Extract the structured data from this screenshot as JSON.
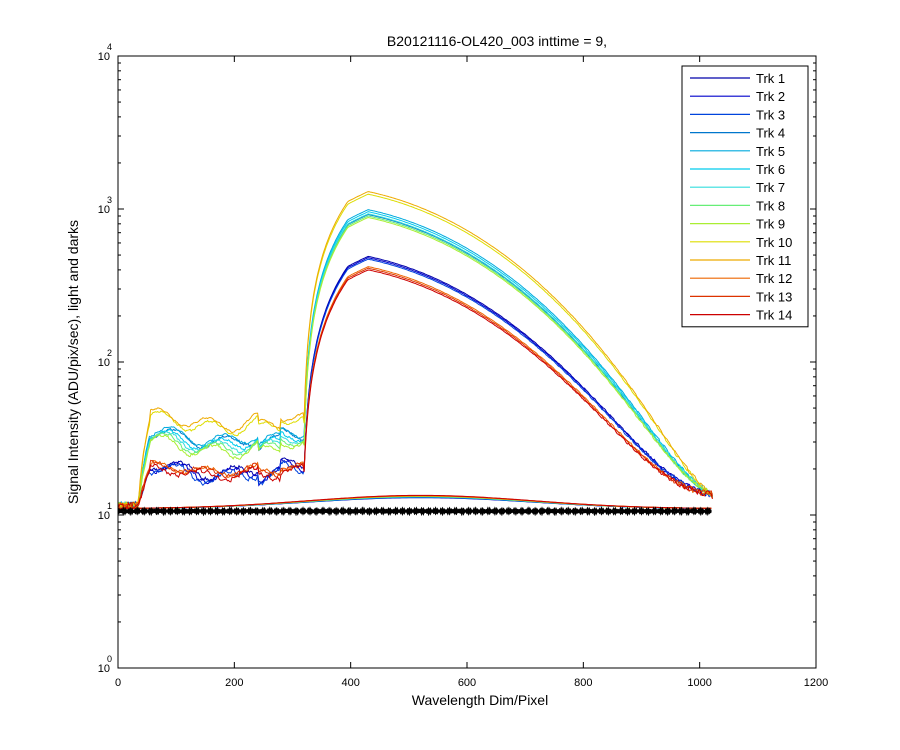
{
  "chart_data": {
    "type": "line",
    "title": "B20121116-OL420_003 inttime = 9,",
    "xlabel": "Wavelength Dim/Pixel",
    "ylabel": "Signal Intensity (ADU/pix/sec), light and darks",
    "xlim": [
      0,
      1200
    ],
    "ylim_exponents": [
      0,
      4
    ],
    "y_scale": "log",
    "x_ticks": [
      "0",
      "200",
      "400",
      "600",
      "800",
      "1000",
      "1200"
    ],
    "y_ticks": [
      {
        "base": "10",
        "exp": "0"
      },
      {
        "base": "10",
        "exp": "1"
      },
      {
        "base": "10",
        "exp": "2"
      },
      {
        "base": "10",
        "exp": "3"
      },
      {
        "base": "10",
        "exp": "4"
      }
    ],
    "grid": false,
    "legend_position": "top-right",
    "series": [
      {
        "name": "Trk 1",
        "color": "#0000aa",
        "peak": 490,
        "lowlevel": 20,
        "ripple": 3
      },
      {
        "name": "Trk 2",
        "color": "#0000cc",
        "peak": 480,
        "lowlevel": 19.5,
        "ripple": 3
      },
      {
        "name": "Trk 3",
        "color": "#0044dd",
        "peak": 470,
        "lowlevel": 19,
        "ripple": 3
      },
      {
        "name": "Trk 4",
        "color": "#0077cc",
        "peak": 920,
        "lowlevel": 32,
        "ripple": 5
      },
      {
        "name": "Trk 5",
        "color": "#00aadd",
        "peak": 990,
        "lowlevel": 33,
        "ripple": 5
      },
      {
        "name": "Trk 6",
        "color": "#00ccee",
        "peak": 960,
        "lowlevel": 31,
        "ripple": 5
      },
      {
        "name": "Trk 7",
        "color": "#33dddd",
        "peak": 930,
        "lowlevel": 30,
        "ripple": 5
      },
      {
        "name": "Trk 8",
        "color": "#66ee77",
        "peak": 900,
        "lowlevel": 29,
        "ripple": 5
      },
      {
        "name": "Trk 9",
        "color": "#aaee33",
        "peak": 880,
        "lowlevel": 28,
        "ripple": 5
      },
      {
        "name": "Trk 10",
        "color": "#dddd00",
        "peak": 1250,
        "lowlevel": 40,
        "ripple": 7
      },
      {
        "name": "Trk 11",
        "color": "#eeaa00",
        "peak": 1300,
        "lowlevel": 42,
        "ripple": 7
      },
      {
        "name": "Trk 12",
        "color": "#ee6600",
        "peak": 420,
        "lowlevel": 20,
        "ripple": 2
      },
      {
        "name": "Trk 13",
        "color": "#dd3300",
        "peak": 410,
        "lowlevel": 20,
        "ripple": 2
      },
      {
        "name": "Trk 14",
        "color": "#cc0000",
        "peak": 400,
        "lowlevel": 19,
        "ripple": 2
      }
    ],
    "dark_level": 11
  }
}
